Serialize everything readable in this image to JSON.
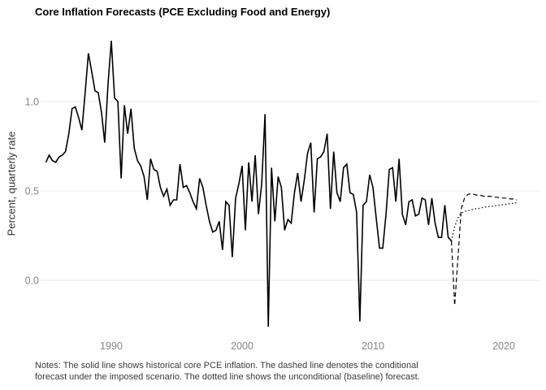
{
  "title": "Core Inflation Forecasts (PCE Excluding Food and Energy)",
  "y_axis": {
    "label": "Percent, quarterly rate",
    "tick_labels": [
      "0.0",
      "0.5",
      "1.0"
    ]
  },
  "x_axis": {
    "tick_labels": [
      "1990",
      "2000",
      "2010",
      "2020"
    ]
  },
  "notes": {
    "lines": [
      "Notes: The solid line shows historical core PCE inflation. The dashed line denotes the conditional",
      "forecast under the imposed scenario. The dotted line shows the unconditional (baseline) forecast."
    ]
  },
  "colors": {
    "line": "#000000",
    "grid": "#e8e8e8",
    "tick_text": "#858585",
    "title_text": "#000000",
    "axis_title_text": "#333333",
    "notes_text": "#3a3a3a",
    "background": "#ffffff"
  },
  "chart_data": {
    "type": "line",
    "title": "Core Inflation Forecasts (PCE Excluding Food and Energy)",
    "xlabel": "",
    "ylabel": "Percent, quarterly rate",
    "frequency": "quarterly",
    "x_step": 0.25,
    "xlim": [
      1984.6,
      2022.8
    ],
    "ylim": [
      -0.3,
      1.4
    ],
    "x_ticks": [
      1990,
      2000,
      2010,
      2020
    ],
    "y_ticks": [
      0.0,
      0.5,
      1.0
    ],
    "grid": "horizontal major gridlines only, no axis lines, no legend",
    "legend": "none",
    "series": [
      {
        "name": "Historical core PCE inflation",
        "style": "solid",
        "x_start": 1985.0,
        "values": [
          0.66,
          0.7,
          0.67,
          0.66,
          0.69,
          0.7,
          0.72,
          0.82,
          0.96,
          0.97,
          0.91,
          0.84,
          1.05,
          1.27,
          1.17,
          1.06,
          1.05,
          0.94,
          0.77,
          1.1,
          1.34,
          1.02,
          1.0,
          0.57,
          0.98,
          0.82,
          0.96,
          0.74,
          0.67,
          0.64,
          0.58,
          0.45,
          0.68,
          0.62,
          0.61,
          0.52,
          0.47,
          0.51,
          0.42,
          0.45,
          0.45,
          0.65,
          0.52,
          0.53,
          0.49,
          0.44,
          0.4,
          0.57,
          0.52,
          0.42,
          0.33,
          0.27,
          0.28,
          0.33,
          0.17,
          0.44,
          0.42,
          0.13,
          0.46,
          0.54,
          0.64,
          0.28,
          0.66,
          0.44,
          0.7,
          0.37,
          0.54,
          0.93,
          -0.26,
          0.63,
          0.33,
          0.58,
          0.52,
          0.28,
          0.34,
          0.32,
          0.49,
          0.6,
          0.44,
          0.56,
          0.71,
          0.77,
          0.38,
          0.68,
          0.69,
          0.72,
          0.82,
          0.4,
          0.72,
          0.49,
          0.44,
          0.63,
          0.65,
          0.49,
          0.48,
          0.38,
          -0.23,
          0.42,
          0.44,
          0.59,
          0.52,
          0.35,
          0.18,
          0.18,
          0.37,
          0.62,
          0.63,
          0.44,
          0.68,
          0.37,
          0.31,
          0.44,
          0.45,
          0.36,
          0.37,
          0.46,
          0.45,
          0.31,
          0.46,
          0.32,
          0.24,
          0.24,
          0.42,
          0.24,
          0.22
        ]
      },
      {
        "name": "Conditional forecast under the imposed scenario",
        "style": "dashed",
        "x_start": 2016.0,
        "values": [
          0.22,
          -0.14,
          0.13,
          0.4,
          0.46,
          0.48,
          0.485,
          0.48,
          0.475,
          0.475,
          0.47,
          0.47,
          0.47,
          0.465,
          0.465,
          0.46,
          0.46,
          0.46,
          0.455,
          0.455,
          0.45
        ]
      },
      {
        "name": "Unconditional (baseline) forecast",
        "style": "dotted",
        "x_start": 2016.0,
        "values": [
          0.22,
          0.3,
          0.35,
          0.375,
          0.385,
          0.39,
          0.395,
          0.4,
          0.4,
          0.405,
          0.41,
          0.41,
          0.415,
          0.415,
          0.42,
          0.42,
          0.425,
          0.425,
          0.43,
          0.43,
          0.435
        ]
      }
    ]
  }
}
